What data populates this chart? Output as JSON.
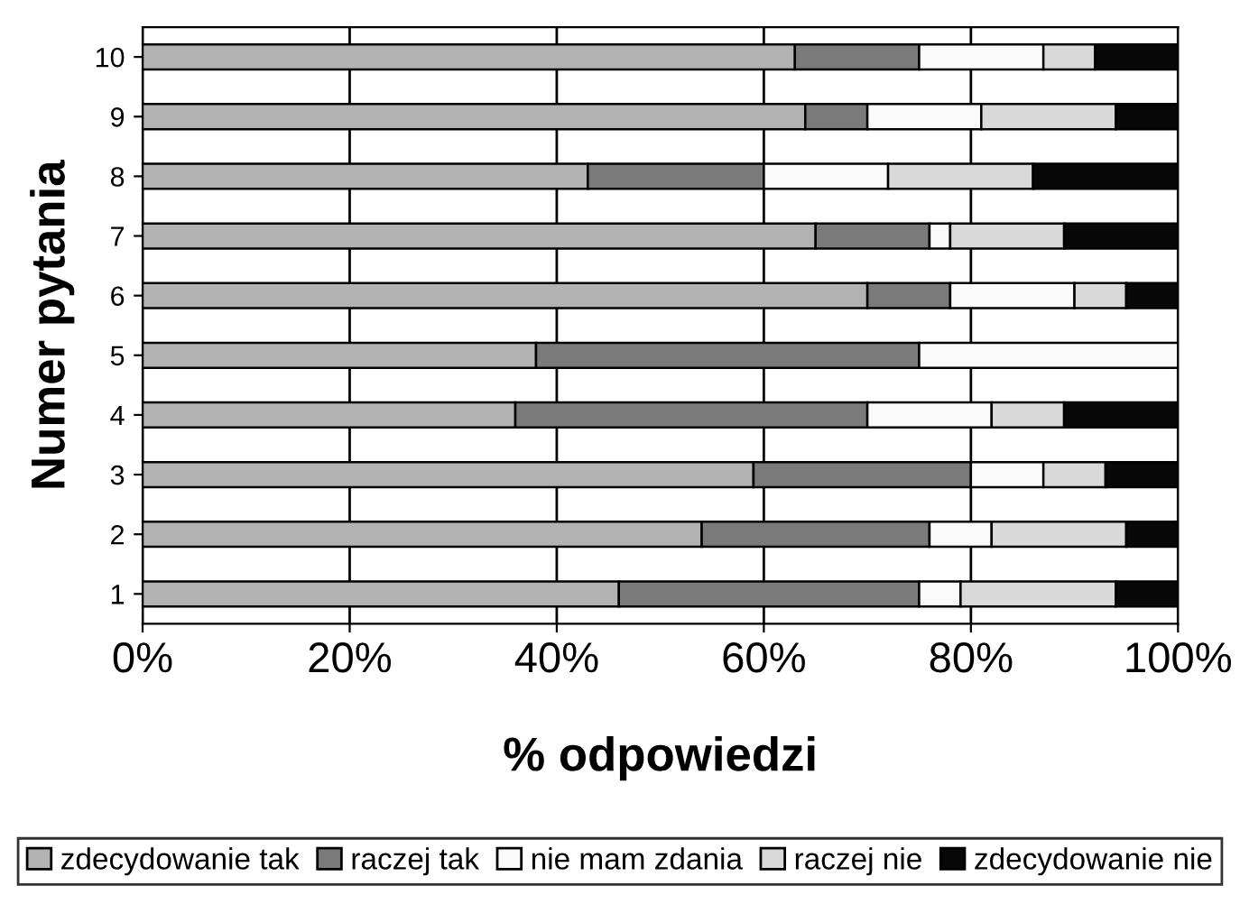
{
  "chart_data": {
    "type": "bar",
    "orientation": "horizontal",
    "stacked": true,
    "categories": [
      "10",
      "9",
      "8",
      "7",
      "6",
      "5",
      "4",
      "3",
      "2",
      "1"
    ],
    "xlabel": "% odpowiedzi",
    "ylabel": "Numer pytania",
    "series": [
      {
        "name": "zdecydowanie tak",
        "color": "#b2b2b2",
        "values": [
          63,
          64,
          43,
          65,
          70,
          38,
          36,
          59,
          54,
          46
        ]
      },
      {
        "name": "raczej tak",
        "color": "#7a7a7a",
        "values": [
          12,
          6,
          17,
          11,
          8,
          37,
          34,
          21,
          22,
          29
        ]
      },
      {
        "name": "nie mam zdania",
        "color": "#fafafa",
        "values": [
          12,
          11,
          12,
          2,
          12,
          25,
          12,
          7,
          6,
          4
        ]
      },
      {
        "name": "raczej nie",
        "color": "#d9d9d9",
        "values": [
          5,
          13,
          14,
          11,
          5,
          0,
          7,
          6,
          13,
          15
        ]
      },
      {
        "name": "zdecydowanie nie",
        "color": "#080808",
        "values": [
          8,
          6,
          14,
          11,
          5,
          0,
          11,
          7,
          5,
          6
        ]
      }
    ],
    "xlim": [
      0,
      100
    ],
    "xticks": [
      {
        "value": 0,
        "label": "0%"
      },
      {
        "value": 20,
        "label": "20%"
      },
      {
        "value": 40,
        "label": "40%"
      },
      {
        "value": 60,
        "label": "60%"
      },
      {
        "value": 80,
        "label": "80%"
      },
      {
        "value": 100,
        "label": "100%"
      }
    ],
    "grid": "x",
    "legend": "bottom"
  }
}
